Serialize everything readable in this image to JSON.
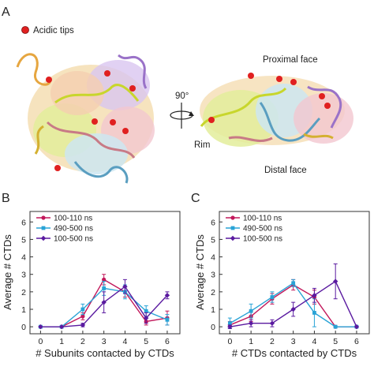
{
  "panels": {
    "a": {
      "letter": "A",
      "legend_label": "Acidic tips",
      "rotation_label": "90°",
      "face_labels": [
        "Proximal face",
        "Rim",
        "Distal face"
      ]
    },
    "b": {
      "letter": "B"
    },
    "c": {
      "letter": "C"
    }
  },
  "colors": {
    "tip": "#e02020",
    "series": [
      "#c2185b",
      "#29a3d6",
      "#5a1aa0"
    ]
  },
  "chart_data": [
    {
      "type": "line",
      "xlabel": "# Subunits contacted by CTDs",
      "ylabel": "Average # CTDs",
      "xlim": [
        -0.5,
        6.6
      ],
      "ylim": [
        -0.4,
        6.6
      ],
      "xticks": [
        0,
        1,
        2,
        3,
        4,
        5,
        6
      ],
      "yticks": [
        0,
        1,
        2,
        3,
        4,
        5,
        6
      ],
      "legend_position": "top-left",
      "x": [
        0,
        1,
        2,
        3,
        4,
        5,
        6
      ],
      "series": [
        {
          "name": "100-110 ns",
          "values": [
            0,
            0,
            0.6,
            2.7,
            2.0,
            0.3,
            0.5
          ],
          "errors": [
            0,
            0,
            0.2,
            0.3,
            0.3,
            0.2,
            0.4
          ]
        },
        {
          "name": "490-500 ns",
          "values": [
            0,
            0,
            1.0,
            2.2,
            2.0,
            0.9,
            0.4
          ],
          "errors": [
            0,
            0,
            0.3,
            0.4,
            0.4,
            0.3,
            0.3
          ]
        },
        {
          "name": "100-500 ns",
          "values": [
            0,
            0,
            0.1,
            1.4,
            2.3,
            0.5,
            1.8
          ],
          "errors": [
            0,
            0,
            0.1,
            0.6,
            0.4,
            0.3,
            0.2
          ]
        }
      ]
    },
    {
      "type": "line",
      "xlabel": "# CTDs contacted by CTDs",
      "ylabel": "Average # CTDs",
      "xlim": [
        -0.5,
        6.6
      ],
      "ylim": [
        -0.4,
        6.6
      ],
      "xticks": [
        0,
        1,
        2,
        3,
        4,
        5,
        6
      ],
      "yticks": [
        0,
        1,
        2,
        3,
        4,
        5,
        6
      ],
      "legend_position": "top-left",
      "x": [
        0,
        1,
        2,
        3,
        4,
        5,
        6
      ],
      "series": [
        {
          "name": "100-110 ns",
          "values": [
            0.1,
            0.6,
            1.6,
            2.4,
            1.7,
            0,
            0
          ],
          "errors": [
            0.2,
            0.3,
            0.3,
            0.3,
            0.4,
            0,
            0
          ]
        },
        {
          "name": "490-500 ns",
          "values": [
            0.2,
            0.9,
            1.7,
            2.5,
            0.8,
            0,
            0
          ],
          "errors": [
            0.3,
            0.4,
            0.3,
            0.2,
            0.8,
            0,
            0
          ]
        },
        {
          "name": "100-500 ns",
          "values": [
            0,
            0.2,
            0.2,
            1.0,
            1.8,
            2.6,
            0
          ],
          "errors": [
            0.1,
            0.2,
            0.2,
            0.4,
            0.4,
            1.0,
            0
          ]
        }
      ]
    }
  ]
}
